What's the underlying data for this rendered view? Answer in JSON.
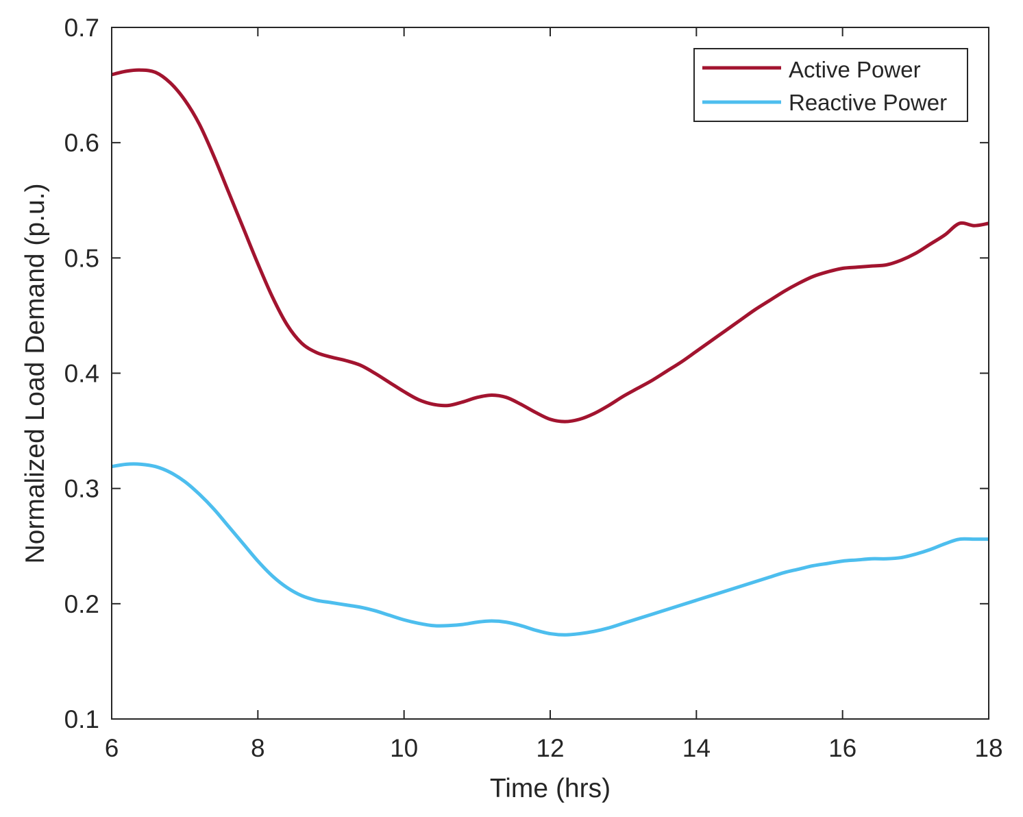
{
  "chart_data": {
    "type": "line",
    "title": "",
    "xlabel": "Time (hrs)",
    "ylabel": "Normalized Load Demand (p.u.)",
    "xlim": [
      6,
      18
    ],
    "ylim": [
      0.1,
      0.7
    ],
    "xticks": [
      6,
      8,
      10,
      12,
      14,
      16,
      18
    ],
    "xtick_labels": [
      "6",
      "8",
      "10",
      "12",
      "14",
      "16",
      "18"
    ],
    "yticks": [
      0.1,
      0.2,
      0.3,
      0.4,
      0.5,
      0.6,
      0.7
    ],
    "ytick_labels": [
      "0.1",
      "0.2",
      "0.3",
      "0.4",
      "0.5",
      "0.6",
      "0.7"
    ],
    "grid": false,
    "legend_position": "top-right",
    "series": [
      {
        "name": "Active Power",
        "color": "#a2142f",
        "x": [
          6.0,
          6.2,
          6.4,
          6.6,
          6.8,
          7.0,
          7.2,
          7.4,
          7.6,
          7.8,
          8.0,
          8.2,
          8.4,
          8.6,
          8.8,
          9.0,
          9.2,
          9.4,
          9.6,
          9.8,
          10.0,
          10.2,
          10.4,
          10.6,
          10.8,
          11.0,
          11.2,
          11.4,
          11.6,
          11.8,
          12.0,
          12.2,
          12.4,
          12.6,
          12.8,
          13.0,
          13.2,
          13.4,
          13.6,
          13.8,
          14.0,
          14.2,
          14.4,
          14.6,
          14.8,
          15.0,
          15.2,
          15.4,
          15.6,
          15.8,
          16.0,
          16.2,
          16.4,
          16.6,
          16.8,
          17.0,
          17.2,
          17.4,
          17.6,
          17.8,
          18.0
        ],
        "y": [
          0.659,
          0.662,
          0.663,
          0.661,
          0.652,
          0.637,
          0.616,
          0.588,
          0.557,
          0.526,
          0.495,
          0.466,
          0.442,
          0.426,
          0.418,
          0.414,
          0.411,
          0.407,
          0.4,
          0.392,
          0.384,
          0.377,
          0.373,
          0.372,
          0.375,
          0.379,
          0.381,
          0.379,
          0.373,
          0.366,
          0.36,
          0.358,
          0.36,
          0.365,
          0.372,
          0.38,
          0.387,
          0.394,
          0.402,
          0.41,
          0.419,
          0.428,
          0.437,
          0.446,
          0.455,
          0.463,
          0.471,
          0.478,
          0.484,
          0.488,
          0.491,
          0.492,
          0.493,
          0.494,
          0.498,
          0.504,
          0.512,
          0.52,
          0.53,
          0.528,
          0.53
        ],
        "dense": true
      },
      {
        "name": "Reactive Power",
        "color": "#4dbeee",
        "x": [
          6.0,
          6.2,
          6.4,
          6.6,
          6.8,
          7.0,
          7.2,
          7.4,
          7.6,
          7.8,
          8.0,
          8.2,
          8.4,
          8.6,
          8.8,
          9.0,
          9.2,
          9.4,
          9.6,
          9.8,
          10.0,
          10.2,
          10.4,
          10.6,
          10.8,
          11.0,
          11.2,
          11.4,
          11.6,
          11.8,
          12.0,
          12.2,
          12.4,
          12.6,
          12.8,
          13.0,
          13.2,
          13.4,
          13.6,
          13.8,
          14.0,
          14.2,
          14.4,
          14.6,
          14.8,
          15.0,
          15.2,
          15.4,
          15.6,
          15.8,
          16.0,
          16.2,
          16.4,
          16.6,
          16.8,
          17.0,
          17.2,
          17.4,
          17.6,
          17.8,
          18.0
        ],
        "y": [
          0.319,
          0.321,
          0.321,
          0.319,
          0.314,
          0.306,
          0.295,
          0.282,
          0.267,
          0.252,
          0.237,
          0.224,
          0.214,
          0.207,
          0.203,
          0.201,
          0.199,
          0.197,
          0.194,
          0.19,
          0.186,
          0.183,
          0.181,
          0.181,
          0.182,
          0.184,
          0.185,
          0.184,
          0.181,
          0.177,
          0.174,
          0.173,
          0.174,
          0.176,
          0.179,
          0.183,
          0.187,
          0.191,
          0.195,
          0.199,
          0.203,
          0.207,
          0.211,
          0.215,
          0.219,
          0.223,
          0.227,
          0.23,
          0.233,
          0.235,
          0.237,
          0.238,
          0.239,
          0.239,
          0.24,
          0.243,
          0.247,
          0.252,
          0.256,
          0.256,
          0.256
        ],
        "dense": true
      }
    ]
  }
}
